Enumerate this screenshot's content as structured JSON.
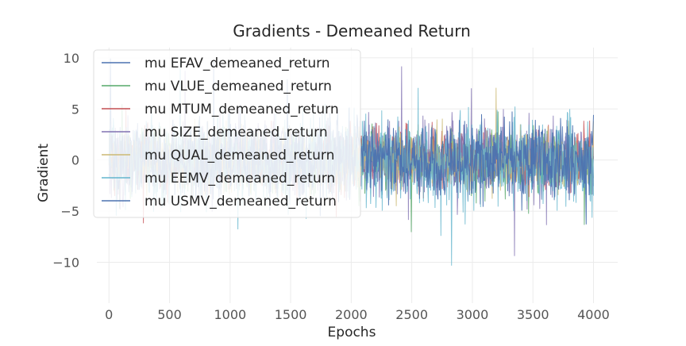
{
  "chart_data": {
    "type": "line",
    "title": "Gradients - Demeaned Return",
    "xlabel": "Epochs",
    "ylabel": "Gradient",
    "xlim": [
      -100,
      4200
    ],
    "ylim": [
      -14,
      11
    ],
    "xticks": [
      0,
      500,
      1000,
      1500,
      2000,
      2500,
      3000,
      3500,
      4000
    ],
    "yticks": [
      -10,
      -5,
      0,
      5,
      10
    ],
    "ytick_labels": [
      "−10",
      "−5",
      "0",
      "5",
      "10"
    ],
    "grid": true,
    "legend_position": "upper-left",
    "x_range": [
      0,
      4000
    ],
    "series": [
      {
        "name": "mu EFAV_demeaned_return",
        "color": "#4c72b0",
        "amplitude": 2.0
      },
      {
        "name": "mu VLUE_demeaned_return",
        "color": "#55a868",
        "amplitude": 2.0
      },
      {
        "name": "mu MTUM_demeaned_return",
        "color": "#c44e52",
        "amplitude": 2.0
      },
      {
        "name": "mu SIZE_demeaned_return",
        "color": "#8172b2",
        "amplitude": 2.5
      },
      {
        "name": "mu QUAL_demeaned_return",
        "color": "#ccb974",
        "amplitude": 2.0
      },
      {
        "name": "mu EEMV_demeaned_return",
        "color": "#64b5cd",
        "amplitude": 3.0
      },
      {
        "name": "mu USMV_demeaned_return",
        "color": "#4c72b0",
        "amplitude": 2.5
      }
    ]
  }
}
